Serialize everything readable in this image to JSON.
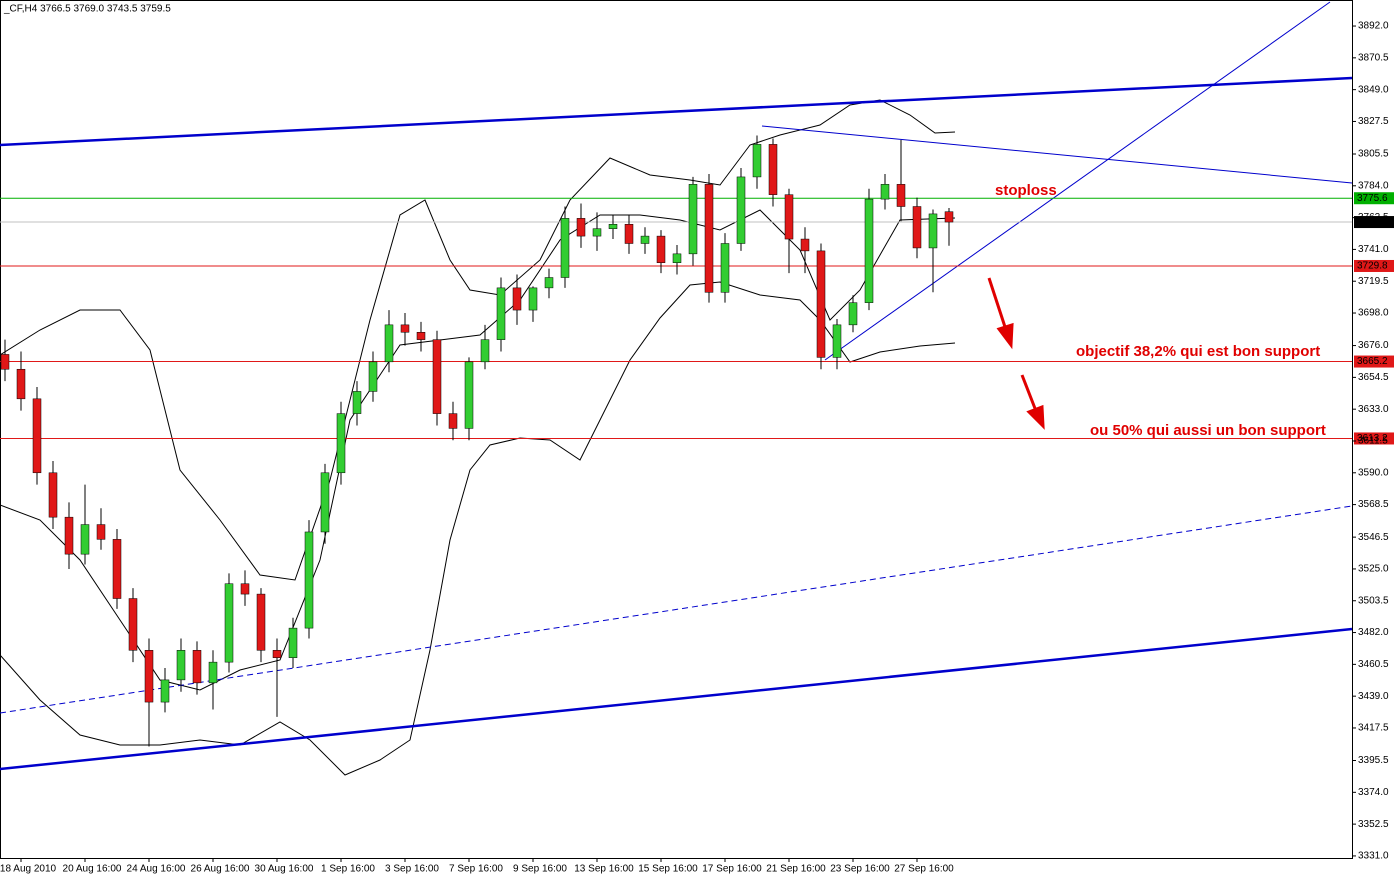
{
  "chart_data": {
    "type": "candlestick",
    "title": "_CF,H4  3766.5 3769.0 3743.5 3759.5",
    "categories": [
      null,
      "18 Aug 2010",
      null,
      null,
      null,
      "20 Aug 16:00",
      null,
      null,
      null,
      "24 Aug 16:00",
      null,
      null,
      null,
      "26 Aug 16:00",
      null,
      null,
      null,
      "30 Aug 16:00",
      null,
      null,
      null,
      "1 Sep 16:00",
      null,
      null,
      null,
      "3 Sep 16:00",
      null,
      null,
      null,
      "7 Sep 16:00",
      null,
      null,
      null,
      "9 Sep 16:00",
      null,
      null,
      null,
      "13 Sep 16:00",
      null,
      null,
      null,
      "15 Sep 16:00",
      null,
      null,
      null,
      "17 Sep 16:00",
      null,
      null,
      null,
      "21 Sep 16:00",
      null,
      null,
      null,
      "23 Sep 16:00",
      null,
      null,
      null,
      "27 Sep 16:00",
      null,
      null
    ],
    "open": [
      3670,
      3660,
      3640,
      3590,
      3560,
      3535,
      3555,
      3545,
      3505,
      3470,
      3435,
      3450,
      3470,
      3448,
      3462,
      3515,
      3508,
      3470,
      3465,
      3485,
      3550,
      3590,
      3630,
      3645,
      3665,
      3690,
      3685,
      3680,
      3630,
      3620,
      3665,
      3680,
      3715,
      3700,
      3715,
      3722,
      3762,
      3750,
      3755,
      3758,
      3745,
      3750,
      3732,
      3738,
      3785,
      3712,
      3745,
      3790,
      3812,
      3778,
      3748,
      3740,
      3668,
      3690,
      3705,
      3775,
      3785,
      3770,
      3742,
      3766.5
    ],
    "high": [
      3680,
      3672,
      3648,
      3598,
      3570,
      3582,
      3566,
      3552,
      3512,
      3478,
      3458,
      3478,
      3476,
      3470,
      3522,
      3524,
      3512,
      3478,
      3492,
      3558,
      3596,
      3638,
      3652,
      3672,
      3700,
      3698,
      3692,
      3686,
      3638,
      3668,
      3690,
      3722,
      3724,
      3716,
      3728,
      3770,
      3772,
      3766,
      3764,
      3764,
      3756,
      3754,
      3744,
      3790,
      3792,
      3752,
      3796,
      3818,
      3816,
      3782,
      3756,
      3745,
      3694,
      3710,
      3782,
      3792,
      3815,
      3776,
      3768,
      3769
    ],
    "low": [
      3652,
      3632,
      3582,
      3552,
      3525,
      3528,
      3538,
      3498,
      3462,
      3405,
      3428,
      3442,
      3440,
      3430,
      3455,
      3500,
      3462,
      3425,
      3458,
      3478,
      3542,
      3582,
      3622,
      3638,
      3658,
      3676,
      3672,
      3622,
      3612,
      3612,
      3660,
      3672,
      3690,
      3692,
      3708,
      3715,
      3742,
      3740,
      3748,
      3738,
      3738,
      3725,
      3724,
      3730,
      3705,
      3705,
      3740,
      3782,
      3770,
      3725,
      3725,
      3660,
      3660,
      3685,
      3700,
      3768,
      3760,
      3735,
      3712,
      3743.5
    ],
    "close": [
      3660,
      3640,
      3590,
      3560,
      3535,
      3555,
      3545,
      3505,
      3470,
      3435,
      3450,
      3470,
      3448,
      3462,
      3515,
      3508,
      3470,
      3465,
      3485,
      3550,
      3590,
      3630,
      3645,
      3665,
      3690,
      3685,
      3680,
      3630,
      3620,
      3665,
      3680,
      3715,
      3700,
      3715,
      3722,
      3762,
      3750,
      3755,
      3758,
      3745,
      3750,
      3732,
      3738,
      3785,
      3712,
      3745,
      3790,
      3812,
      3778,
      3748,
      3740,
      3668,
      3690,
      3705,
      3775,
      3785,
      3770,
      3742,
      3765,
      3759.5
    ],
    "up_color": "#32cd32",
    "down_color": "#e01818",
    "levels": [
      {
        "value": 3775.6,
        "color": "#00b000"
      },
      {
        "value": 3759.5,
        "color": "#000000"
      },
      {
        "value": 3729.8,
        "color": "#e01818"
      },
      {
        "value": 3665.2,
        "color": "#e01818"
      },
      {
        "value": 3613.2,
        "color": "#e01818"
      }
    ],
    "annotations": [
      "stoploss",
      "objectif 38,2% qui est bon support",
      "ou 50% qui aussi un bon support"
    ],
    "ylim": [
      3329.6,
      3909.6
    ],
    "yticks": [
      {
        "value": 3892,
        "label": "3892.0"
      },
      {
        "value": 3870.5,
        "label": "3870.5"
      },
      {
        "value": 3849,
        "label": "3849.0"
      },
      {
        "value": 3827.5,
        "label": "3827.5"
      },
      {
        "value": 3805.5,
        "label": "3805.5"
      },
      {
        "value": 3784,
        "label": "3784.0"
      },
      {
        "value": 3762.5,
        "label": "3762.5"
      },
      {
        "value": 3741,
        "label": "3741.0"
      },
      {
        "value": 3719.5,
        "label": "3719.5"
      },
      {
        "value": 3698,
        "label": "3698.0"
      },
      {
        "value": 3676,
        "label": "3676.0"
      },
      {
        "value": 3654.5,
        "label": "3654.5"
      },
      {
        "value": 3633,
        "label": "3633.0"
      },
      {
        "value": 3611.5,
        "label": "3611.5"
      },
      {
        "value": 3590,
        "label": "3590.0"
      },
      {
        "value": 3568.5,
        "label": "3568.5"
      },
      {
        "value": 3546.5,
        "label": "3546.5"
      },
      {
        "value": 3525,
        "label": "3525.0"
      },
      {
        "value": 3503.5,
        "label": "3503.5"
      },
      {
        "value": 3482,
        "label": "3482.0"
      },
      {
        "value": 3460.5,
        "label": "3460.5"
      },
      {
        "value": 3439,
        "label": "3439.0"
      },
      {
        "value": 3417.5,
        "label": "3417.5"
      },
      {
        "value": 3395.5,
        "label": "3395.5"
      },
      {
        "value": 3374,
        "label": "3374.0"
      },
      {
        "value": 3352.5,
        "label": "3352.5"
      },
      {
        "value": 3331,
        "label": "3331.0"
      }
    ]
  }
}
